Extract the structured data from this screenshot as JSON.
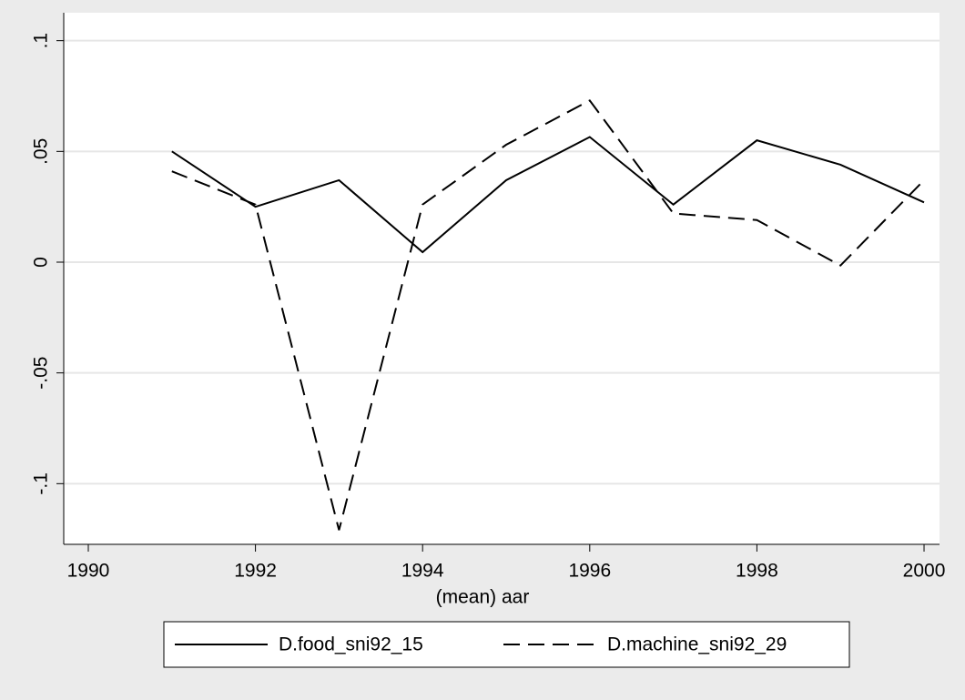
{
  "chart_data": {
    "type": "line",
    "x_label": "(mean) aar",
    "x": [
      1991,
      1992,
      1993,
      1994,
      1995,
      1996,
      1997,
      1998,
      1999,
      2000
    ],
    "series": [
      {
        "name": "D.food_sni92_15",
        "color": "#000000",
        "line_style": "solid",
        "values": [
          0.05,
          0.025,
          0.037,
          0.0045,
          0.037,
          0.0565,
          0.026,
          0.055,
          0.044,
          0.027
        ]
      },
      {
        "name": "D.machine_sni92_29",
        "color": "#000000",
        "line_style": "dashed",
        "values": [
          0.041,
          0.026,
          -0.121,
          0.026,
          0.053,
          0.073,
          0.022,
          0.019,
          -0.0015,
          0.037
        ]
      }
    ],
    "xlim": [
      1989.706,
      2000.185
    ],
    "xticks": [
      1990,
      1992,
      1994,
      1996,
      1998,
      2000
    ],
    "ylim": [
      -0.1274,
      0.1126
    ],
    "yticks": [
      {
        "value": -0.1,
        "label": "-.1"
      },
      {
        "value": -0.05,
        "label": "-.05"
      },
      0,
      {
        "value": 0.05,
        "label": ".05"
      },
      {
        "value": 0.1,
        "label": ".1"
      }
    ],
    "grid": true,
    "legend_position": "bottom"
  }
}
